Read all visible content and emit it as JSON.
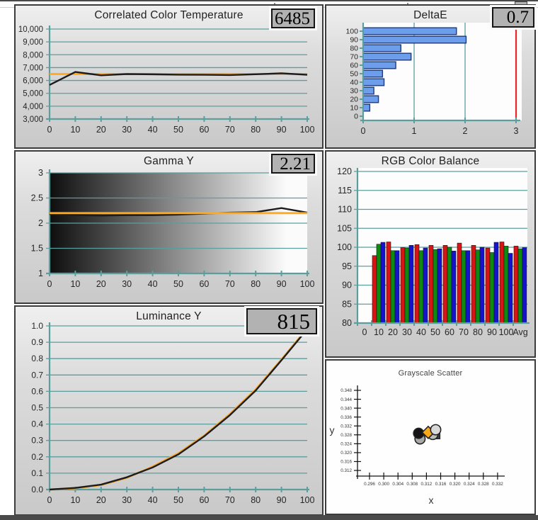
{
  "top_strip": {
    "icon": "window-control-icon"
  },
  "colors": {
    "grid_teal": "#5C9E9E",
    "reference_orange": "#FFA821",
    "measured_black": "#1C1C1C",
    "deltae_bar_fill": "#6D9EEB",
    "deltae_bar_border": "#1F3A7A",
    "deltae_limit_red": "#E82828",
    "value_box_bg": "#B2B2B2"
  },
  "chart_data": [
    {
      "id": "cct",
      "type": "line",
      "title": "Correlated Color Temperature",
      "value_box": "6485",
      "x": [
        0,
        10,
        20,
        30,
        40,
        50,
        60,
        70,
        80,
        90,
        100
      ],
      "xtick_labels": [
        "0",
        "10",
        "20",
        "30",
        "40",
        "50",
        "60",
        "70",
        "80",
        "90",
        "100"
      ],
      "ylim": [
        3000,
        10000
      ],
      "yticks": [
        3000,
        4000,
        5000,
        6000,
        7000,
        8000,
        9000,
        10000
      ],
      "ytick_labels": [
        "3,000",
        "4,000",
        "5,000",
        "6,000",
        "7,000",
        "8,000",
        "9,000",
        "10,000"
      ],
      "series": [
        {
          "name": "target",
          "color": "#FFA821",
          "values": [
            6500,
            6500,
            6500,
            6500,
            6500,
            6500,
            6500,
            6500,
            6500,
            6500,
            6500
          ]
        },
        {
          "name": "measured",
          "color": "#1C1C1C",
          "values": [
            5650,
            6660,
            6400,
            6500,
            6480,
            6450,
            6440,
            6420,
            6480,
            6560,
            6440
          ]
        }
      ]
    },
    {
      "id": "deltae",
      "type": "bar-h",
      "title": "DeltaE",
      "value_box": "0.7",
      "categories": [
        "100",
        "90",
        "80",
        "70",
        "60",
        "50",
        "40",
        "30",
        "20",
        "10",
        "0"
      ],
      "values": [
        1.83,
        2.02,
        0.74,
        0.94,
        0.64,
        0.38,
        0.41,
        0.21,
        0.3,
        0.13,
        0
      ],
      "xlim": [
        0,
        3
      ],
      "xticks": [
        0,
        1,
        2,
        3
      ],
      "xtick_labels": [
        "0",
        "1",
        "2",
        "3"
      ],
      "limit_line": 3
    },
    {
      "id": "gamma",
      "type": "line",
      "title": "Gamma Y",
      "value_box": "2.21",
      "x": [
        0,
        10,
        20,
        30,
        40,
        50,
        60,
        70,
        80,
        90,
        100
      ],
      "xtick_labels": [
        "0",
        "10",
        "20",
        "30",
        "40",
        "50",
        "60",
        "70",
        "80",
        "90",
        "100"
      ],
      "ylim": [
        1,
        3
      ],
      "yticks": [
        1,
        1.5,
        2,
        2.5,
        3
      ],
      "ytick_labels": [
        "1",
        "1.5",
        "2",
        "2.5",
        "3"
      ],
      "series": [
        {
          "name": "measured",
          "color": "#1C1C1C",
          "values": [
            2.18,
            2.16,
            2.15,
            2.16,
            2.16,
            2.17,
            2.19,
            2.21,
            2.22,
            2.3,
            2.21
          ]
        },
        {
          "name": "target",
          "color": "#FFA821",
          "values": [
            2.2,
            2.2,
            2.2,
            2.2,
            2.2,
            2.2,
            2.2,
            2.2,
            2.2,
            2.2,
            2.2
          ]
        }
      ]
    },
    {
      "id": "rgb",
      "type": "bar",
      "title": "RGB Color Balance",
      "categories": [
        "0",
        "10",
        "20",
        "30",
        "40",
        "50",
        "60",
        "70",
        "80",
        "90",
        "100",
        "Avg"
      ],
      "ylim": [
        80,
        120
      ],
      "yticks": [
        80,
        85,
        90,
        95,
        100,
        105,
        110,
        115,
        120
      ],
      "ytick_labels": [
        "80",
        "85",
        "90",
        "95",
        "100",
        "105",
        "110",
        "115",
        "120"
      ],
      "series": [
        {
          "name": "Red",
          "color": "#D91414",
          "values": [
            null,
            97.8,
            101.4,
            99.9,
            100.7,
            100.5,
            100.5,
            101.1,
            100.5,
            99.8,
            101.4,
            100.3
          ]
        },
        {
          "name": "Green",
          "color": "#0E8A0E",
          "values": [
            null,
            100.8,
            99.1,
            99.8,
            99.1,
            99.4,
            100.0,
            99.1,
            99.3,
            98.6,
            100.3,
            99.6
          ]
        },
        {
          "name": "Blue",
          "color": "#1414CC",
          "values": [
            null,
            101.3,
            99.1,
            100.5,
            99.8,
            99.6,
            99.0,
            99.1,
            100.0,
            101.3,
            98.4,
            99.9
          ]
        }
      ]
    },
    {
      "id": "luminance",
      "type": "line",
      "title": "Luminance Y",
      "value_box": "815",
      "x": [
        0,
        10,
        20,
        30,
        40,
        50,
        60,
        70,
        80,
        90,
        100
      ],
      "xtick_labels": [
        "0",
        "10",
        "20",
        "30",
        "40",
        "50",
        "60",
        "70",
        "80",
        "90",
        "100"
      ],
      "ylim": [
        0,
        1
      ],
      "yticks": [
        0,
        0.1,
        0.2,
        0.3,
        0.4,
        0.5,
        0.6,
        0.7,
        0.8,
        0.9,
        1.0
      ],
      "ytick_labels": [
        "0.0",
        "0.1",
        "0.2",
        "0.3",
        "0.4",
        "0.5",
        "0.6",
        "0.7",
        "0.8",
        "0.9",
        "1.0"
      ],
      "series": [
        {
          "name": "target",
          "color": "#FFA821",
          "values": [
            0,
            0.008,
            0.028,
            0.072,
            0.14,
            0.222,
            0.33,
            0.462,
            0.612,
            0.795,
            0.985
          ]
        },
        {
          "name": "measured",
          "color": "#1C1C1C",
          "values": [
            0,
            0.01,
            0.03,
            0.075,
            0.135,
            0.215,
            0.325,
            0.455,
            0.605,
            0.79,
            0.98
          ]
        }
      ]
    },
    {
      "id": "scatter",
      "type": "scatter",
      "title": "Grayscale Scatter",
      "xlabel": "x",
      "ylabel": "y",
      "xticks": [
        0.296,
        0.3,
        0.304,
        0.308,
        0.312,
        0.316,
        0.32,
        0.324,
        0.328,
        0.332
      ],
      "xtick_labels": [
        "0.296",
        "0.300",
        "0.304",
        "0.308",
        "0.312",
        "0.316",
        "0.320",
        "0.324",
        "0.328",
        "0.332"
      ],
      "yticks": [
        0.312,
        0.316,
        0.32,
        0.324,
        0.328,
        0.332,
        0.336,
        0.34,
        0.344,
        0.348
      ],
      "ytick_labels": [
        "0.312",
        "0.316",
        "0.320",
        "0.324",
        "0.328",
        "0.332",
        "0.336",
        "0.340",
        "0.344",
        "0.348"
      ],
      "points": [
        {
          "x": 0.3102,
          "y": 0.3262,
          "shape": "circle",
          "color": "#A9A9A9"
        },
        {
          "x": 0.3148,
          "y": 0.3278,
          "shape": "square",
          "color": "#3E3E3E"
        },
        {
          "x": 0.3138,
          "y": 0.3282,
          "shape": "circle",
          "color": "#BDBDBD"
        },
        {
          "x": 0.3098,
          "y": 0.3287,
          "shape": "circle",
          "color": "#141414"
        },
        {
          "x": 0.3125,
          "y": 0.3291,
          "shape": "diamond",
          "color": "#F7A81B"
        },
        {
          "x": 0.3146,
          "y": 0.3303,
          "shape": "circle",
          "color": "#D8D8D8"
        }
      ]
    }
  ]
}
